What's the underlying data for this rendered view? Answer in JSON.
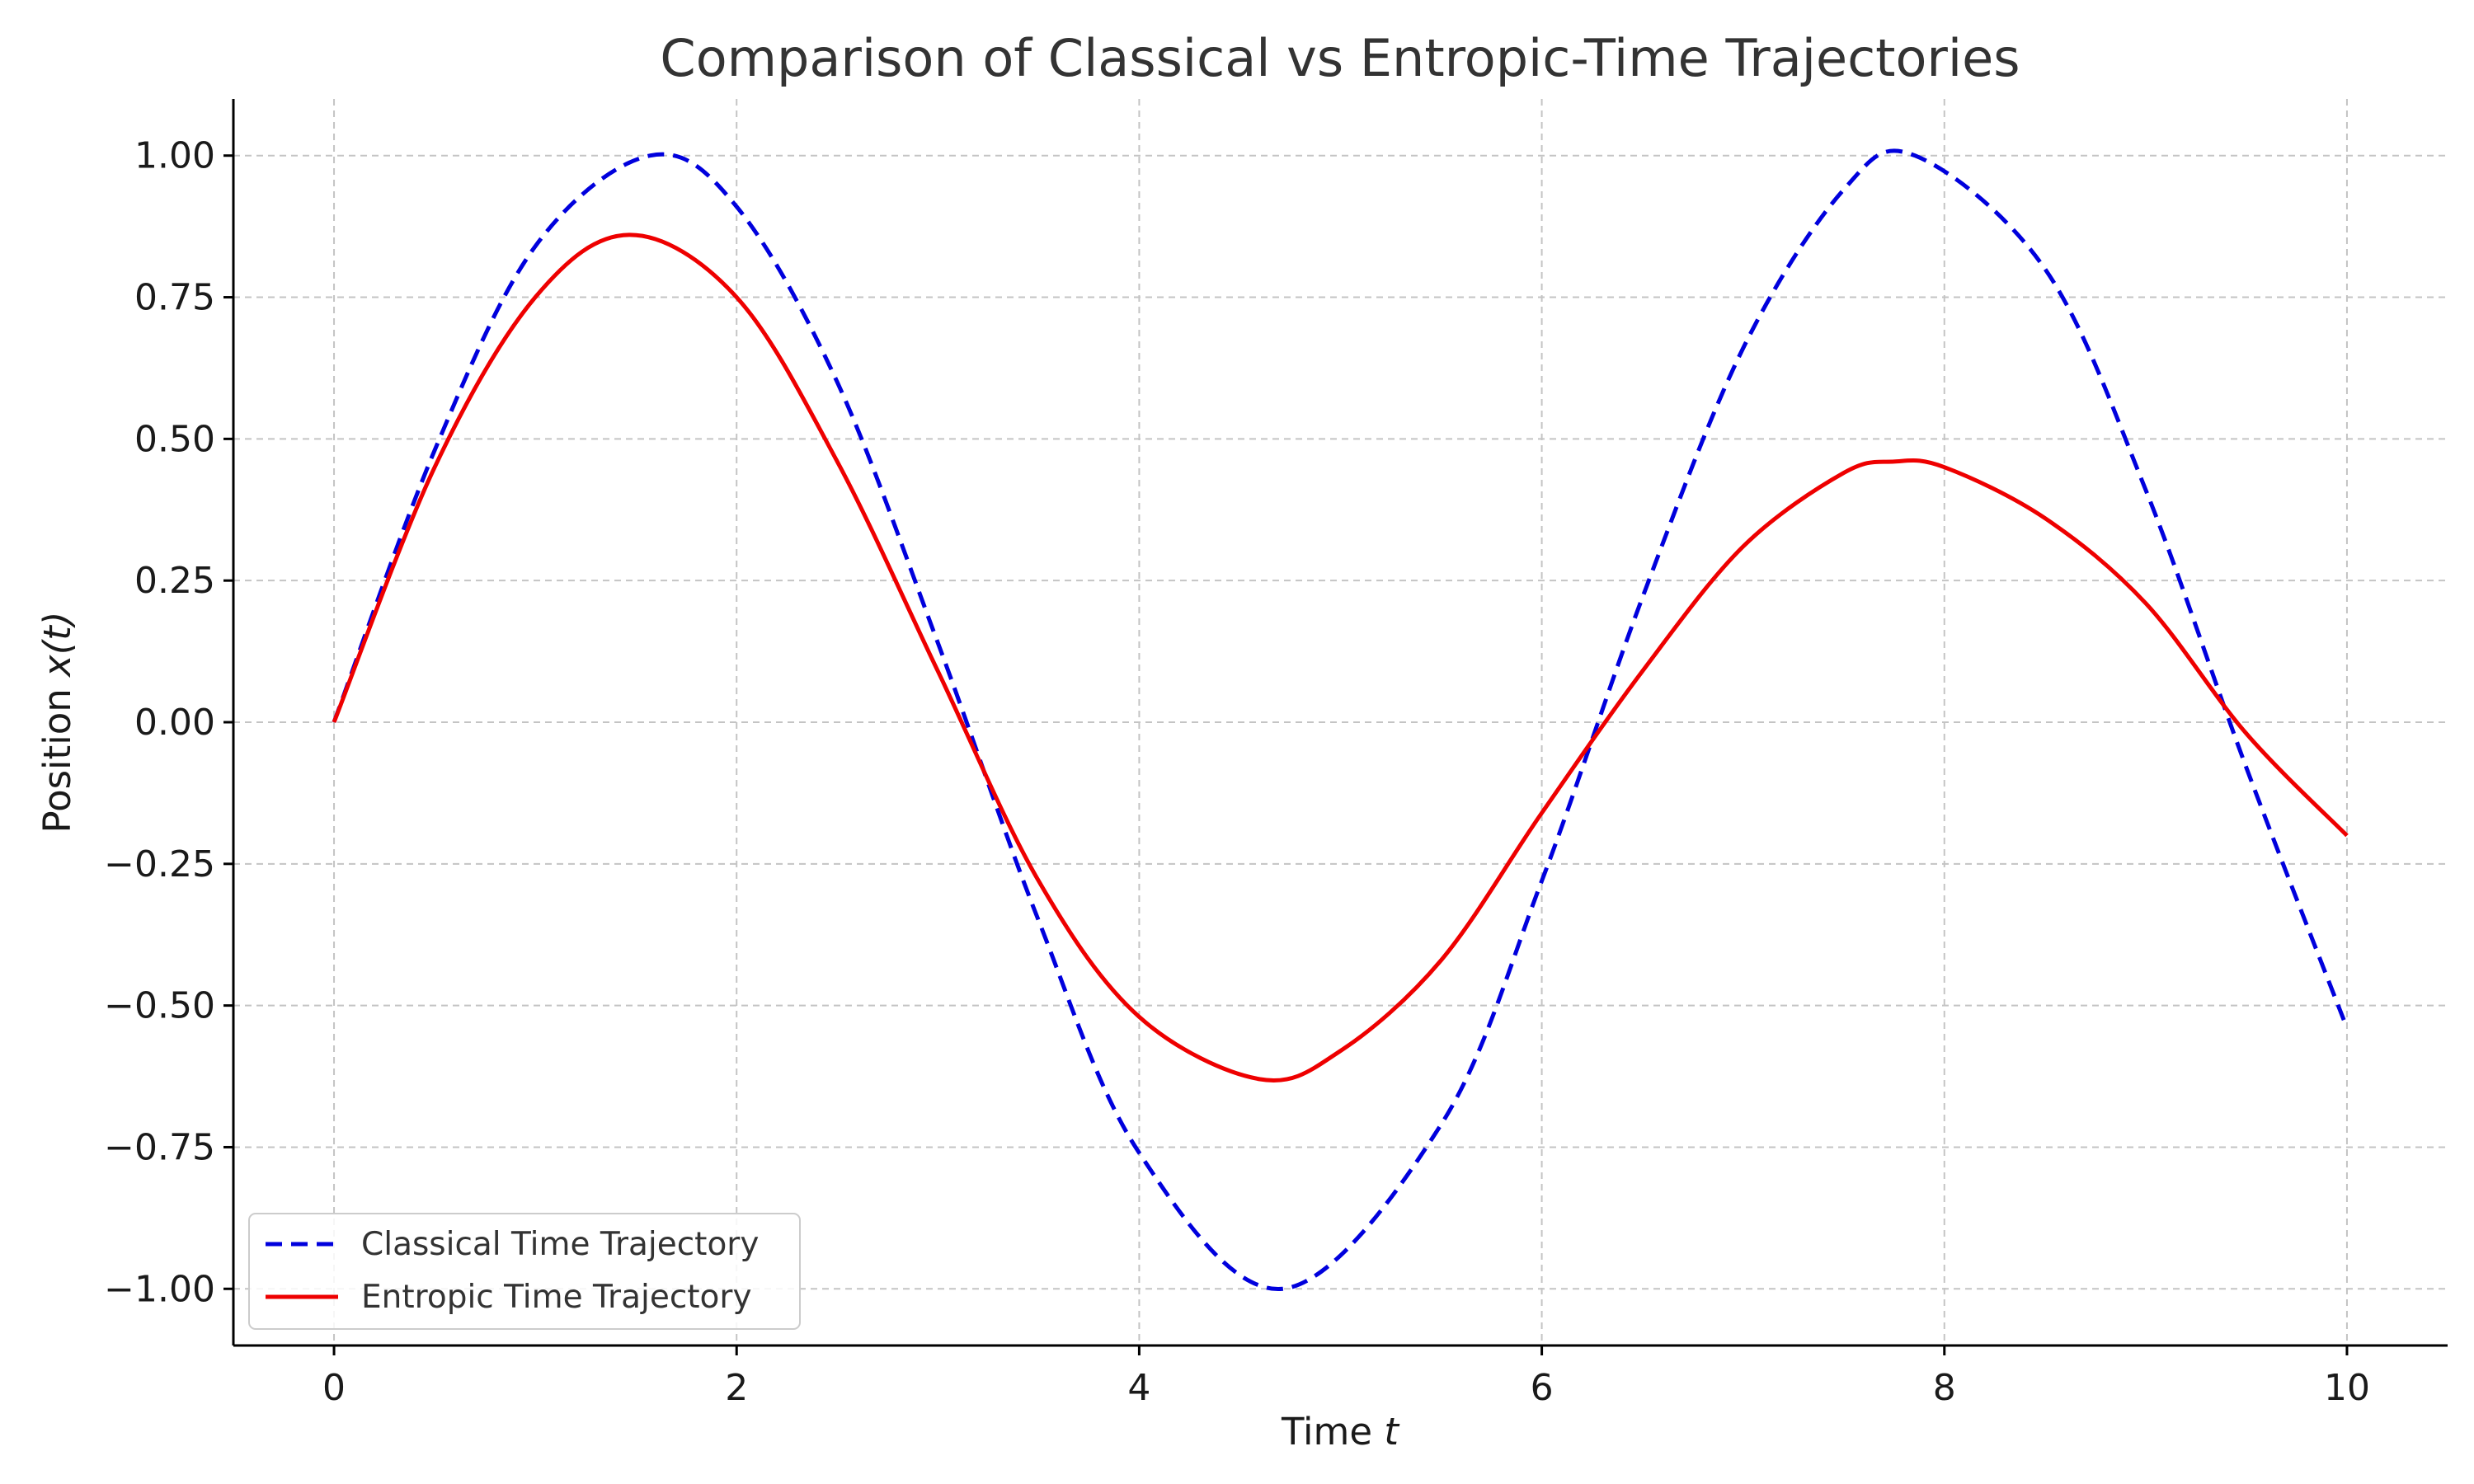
{
  "chart_data": {
    "type": "line",
    "title": "Comparison of Classical vs Entropic-Time Trajectories",
    "xlabel": "Time",
    "xlabel_var": "t",
    "ylabel": "Position",
    "ylabel_var": "x(t)",
    "xlim": [
      -0.5,
      10.5
    ],
    "ylim": [
      -1.1,
      1.1
    ],
    "x_ticks": [
      0,
      2,
      4,
      6,
      8,
      10
    ],
    "x_tick_labels": [
      "0",
      "2",
      "4",
      "6",
      "8",
      "10"
    ],
    "y_ticks": [
      1.0,
      0.75,
      0.5,
      0.25,
      0.0,
      -0.25,
      -0.5,
      -0.75,
      -1.0
    ],
    "y_tick_labels": [
      "1.00",
      "0.75",
      "0.50",
      "0.25",
      "0.00",
      "−0.25",
      "−0.50",
      "−0.75",
      "−1.00"
    ],
    "grid": true,
    "legend_position": "lower-left",
    "series": [
      {
        "name": "Classical Time Trajectory",
        "color": "#0000dd",
        "style": "dashed",
        "x": [
          0,
          0.5,
          1.0,
          1.571,
          2.0,
          2.5,
          3.0,
          3.5,
          4.0,
          4.712,
          5.5,
          6.0,
          6.5,
          7.0,
          7.5,
          7.854,
          8.5,
          9.0,
          9.5,
          10.0
        ],
        "y": [
          0,
          0.48,
          0.84,
          1.0,
          0.91,
          0.6,
          0.14,
          -0.35,
          -0.76,
          -1.0,
          -0.71,
          -0.28,
          0.22,
          0.66,
          0.94,
          1.0,
          0.8,
          0.41,
          -0.08,
          -0.54
        ]
      },
      {
        "name": "Entropic Time Trajectory",
        "color": "#ee0000",
        "style": "solid",
        "x": [
          0,
          0.5,
          1.0,
          1.47,
          2.0,
          2.5,
          3.0,
          3.5,
          4.0,
          4.6,
          5.0,
          5.5,
          6.0,
          6.5,
          7.0,
          7.5,
          7.75,
          8.0,
          8.5,
          9.0,
          9.5,
          10.0
        ],
        "y": [
          0,
          0.45,
          0.75,
          0.86,
          0.75,
          0.46,
          0.09,
          -0.28,
          -0.52,
          -0.63,
          -0.58,
          -0.42,
          -0.16,
          0.09,
          0.31,
          0.44,
          0.46,
          0.45,
          0.36,
          0.21,
          -0.02,
          -0.2
        ]
      }
    ]
  }
}
